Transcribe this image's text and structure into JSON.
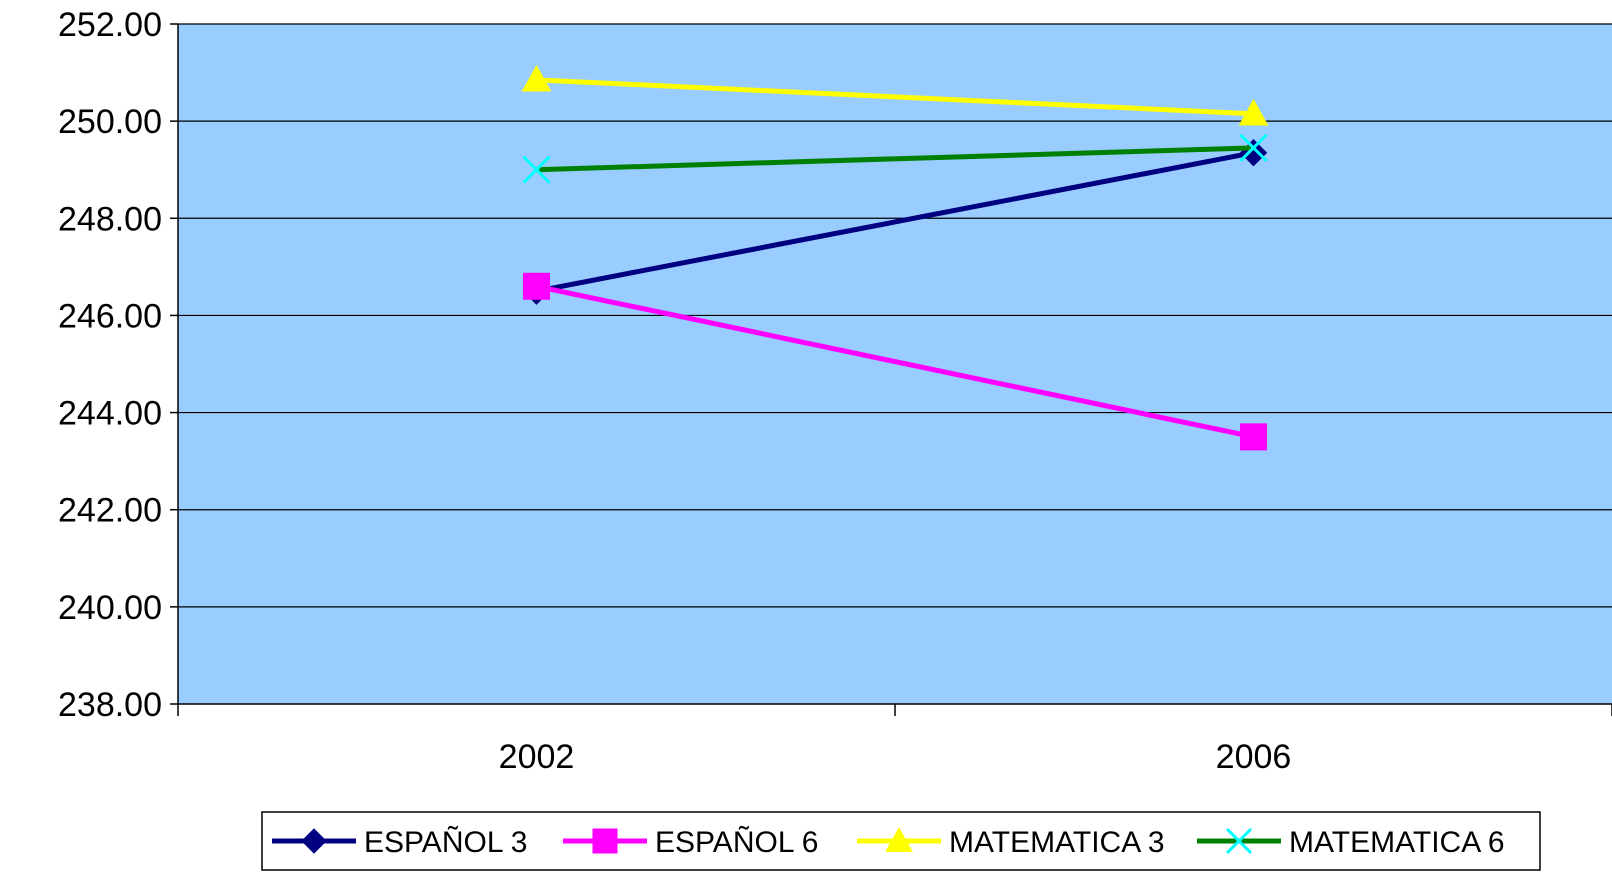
{
  "chart_data": {
    "type": "line",
    "categories": [
      "2002",
      "2006"
    ],
    "ylim": [
      238,
      252
    ],
    "y_ticks": [
      "238.00",
      "240.00",
      "242.00",
      "244.00",
      "246.00",
      "248.00",
      "250.00",
      "252.00"
    ],
    "grid": true,
    "plot_background": "#99ccff",
    "legend_position": "bottom",
    "series": [
      {
        "name": "ESPAÑOL 3",
        "values": [
          246.5,
          249.35
        ],
        "color": "#000080",
        "marker": "diamond"
      },
      {
        "name": "ESPAÑOL 6",
        "values": [
          246.6,
          243.5
        ],
        "color": "#ff00ff",
        "marker": "square"
      },
      {
        "name": "MATEMATICA 3",
        "values": [
          250.85,
          250.15
        ],
        "color": "#ffff00",
        "marker": "triangle"
      },
      {
        "name": "MATEMATICA 6",
        "values": [
          249.0,
          249.45
        ],
        "color": "#008000",
        "marker": "x",
        "marker_color": "#00ffff"
      }
    ]
  }
}
